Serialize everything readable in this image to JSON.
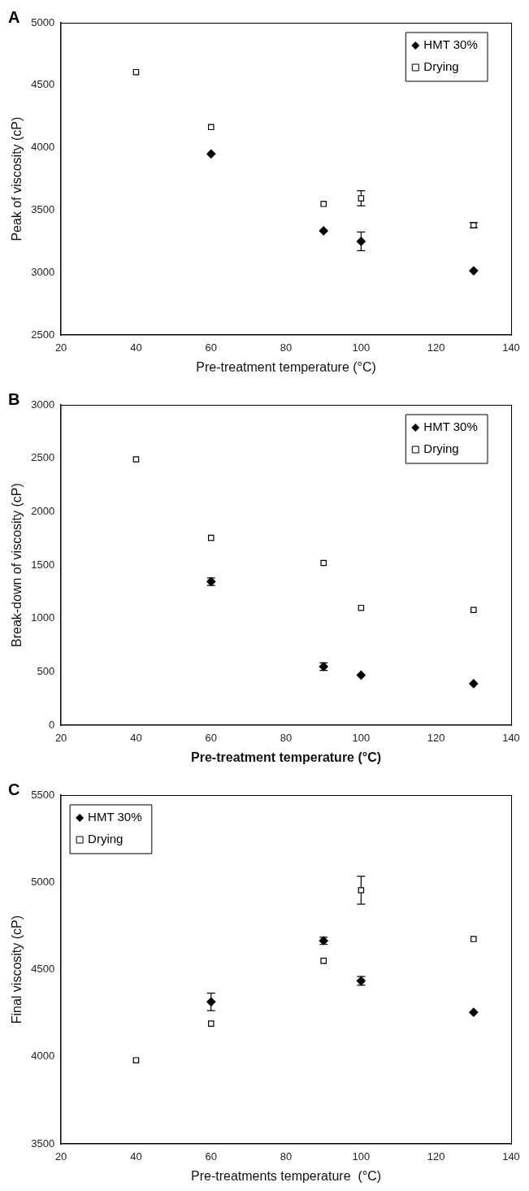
{
  "chart_data": [
    {
      "type": "scatter",
      "title": "A",
      "xlabel": "Pre-treatment temperature (°C)",
      "ylabel": "Peak of viscosity (cP)",
      "x": [
        40,
        60,
        90,
        100,
        130
      ],
      "xlim": [
        20,
        140
      ],
      "xticks": [
        20,
        40,
        60,
        80,
        100,
        120,
        140
      ],
      "ylim": [
        2500,
        5000
      ],
      "yticks": [
        2500,
        3000,
        3500,
        4000,
        4500,
        5000
      ],
      "legend": "top right",
      "grid": false,
      "series": [
        {
          "name": "HMT 30%",
          "color": "#000000",
          "marker": "diamond",
          "values": [
            null,
            3950,
            3335,
            3250,
            3015
          ],
          "errors": [
            null,
            null,
            null,
            75,
            null
          ]
        },
        {
          "name": "Drying",
          "color": "#000000",
          "marker": "square",
          "values": [
            4605,
            4165,
            3550,
            3595,
            3380
          ],
          "errors": [
            null,
            null,
            null,
            60,
            20
          ]
        }
      ]
    },
    {
      "type": "scatter",
      "title": "B",
      "xlabel": "Pre-treatment temperature (°C)",
      "ylabel": "Break-down of viscosity (cP)",
      "x": [
        40,
        60,
        90,
        100,
        130
      ],
      "xlim": [
        20,
        140
      ],
      "xticks": [
        20,
        40,
        60,
        80,
        100,
        120,
        140
      ],
      "ylim": [
        0,
        3000
      ],
      "yticks": [
        0,
        500,
        1000,
        1500,
        2000,
        2500,
        3000
      ],
      "legend": "top right",
      "grid": false,
      "series": [
        {
          "name": "HMT 30%",
          "color": "#000000",
          "marker": "diamond",
          "values": [
            null,
            1345,
            550,
            470,
            390
          ],
          "errors": [
            null,
            35,
            35,
            null,
            null
          ]
        },
        {
          "name": "Drying",
          "color": "#000000",
          "marker": "square",
          "values": [
            2490,
            1755,
            1520,
            1100,
            1080
          ],
          "errors": [
            null,
            null,
            null,
            null,
            null
          ]
        }
      ]
    },
    {
      "type": "scatter",
      "title": "C",
      "xlabel": "Pre-treatments temperature  (°C)",
      "ylabel": "Final viscosity (cP)",
      "x": [
        40,
        60,
        90,
        100,
        130
      ],
      "xlim": [
        20,
        140
      ],
      "xticks": [
        20,
        40,
        60,
        80,
        100,
        120,
        140
      ],
      "ylim": [
        3500,
        5500
      ],
      "yticks": [
        3500,
        4000,
        4500,
        5000,
        5500
      ],
      "legend": "top left",
      "grid": false,
      "series": [
        {
          "name": "HMT 30%",
          "color": "#000000",
          "marker": "diamond",
          "values": [
            null,
            4315,
            4665,
            4435,
            4255
          ],
          "errors": [
            null,
            50,
            20,
            25,
            null
          ]
        },
        {
          "name": "Drying",
          "color": "#000000",
          "marker": "square",
          "values": [
            3980,
            4190,
            4550,
            4955,
            4675
          ],
          "errors": [
            null,
            null,
            null,
            80,
            null
          ]
        }
      ]
    }
  ]
}
